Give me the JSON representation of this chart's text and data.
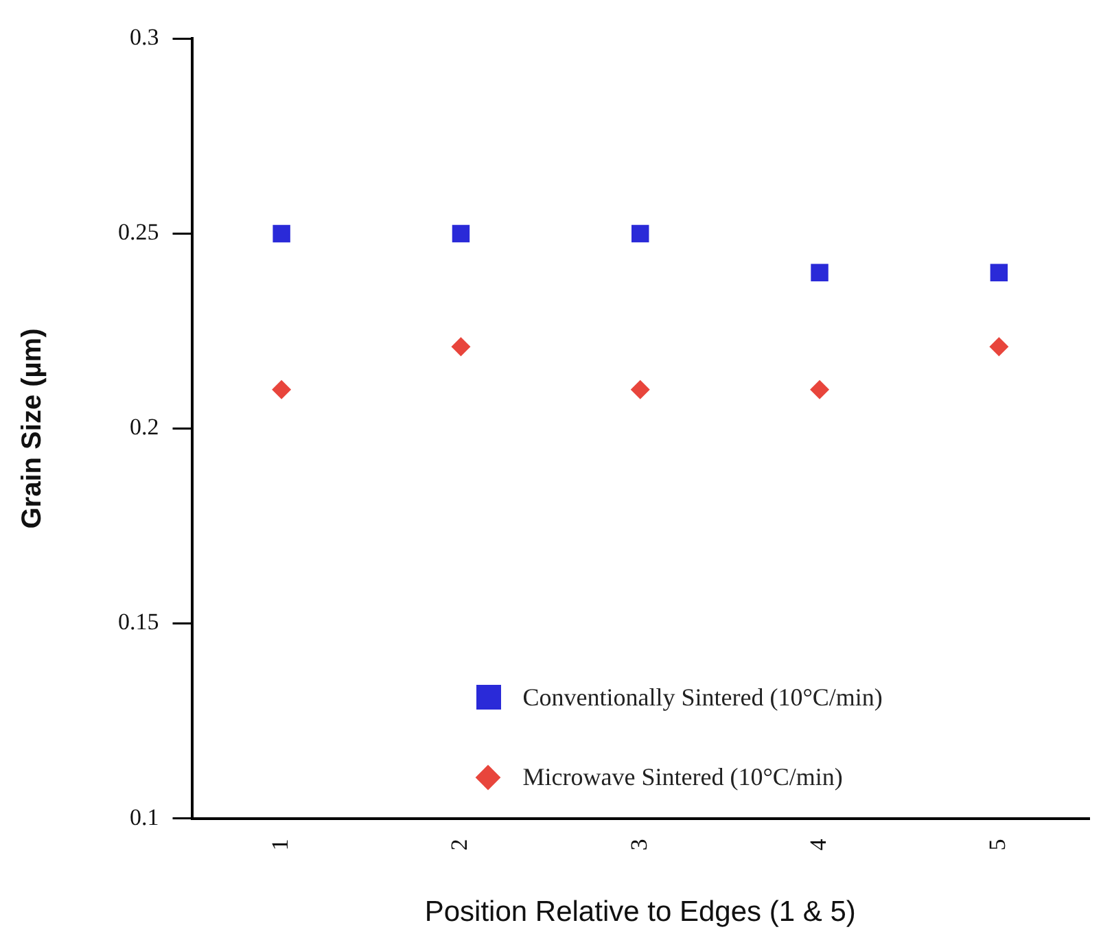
{
  "chart_data": {
    "type": "scatter",
    "xlabel": "Position Relative to Edges (1 & 5)",
    "ylabel": "Grain Size (µm)",
    "categories": [
      "1",
      "2",
      "3",
      "4",
      "5"
    ],
    "series": [
      {
        "name": "Conventionally Sintered (10°C/min)",
        "color": "#2a2ad8",
        "values": [
          0.25,
          0.25,
          0.25,
          0.24,
          0.24
        ],
        "marker": "square"
      },
      {
        "name": "Microwave Sintered (10°C/min)",
        "color": "#e8453c",
        "values": [
          0.21,
          0.221,
          0.21,
          0.21,
          0.221
        ],
        "marker": "diamond"
      }
    ],
    "ylim": [
      0.1,
      0.3
    ],
    "yticks": [
      0.1,
      0.15,
      0.2,
      0.25,
      0.3
    ],
    "grid": false,
    "legend": "bottom right"
  }
}
